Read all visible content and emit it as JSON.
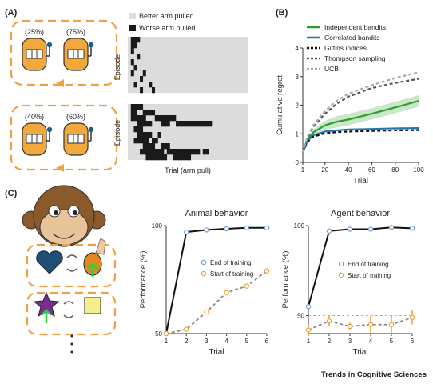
{
  "panel_labels": {
    "a": "(A)",
    "b": "(B)",
    "c": "(C)"
  },
  "footer": "Trends in Cognitive Sciences",
  "panel_a": {
    "slot_pair_top": [
      "(25%)",
      "(75%)"
    ],
    "slot_pair_bottom": [
      "(40%)",
      "(60%)"
    ],
    "legend": [
      "Better arm pulled",
      "Worse arm pulled"
    ],
    "ylabel": "Episode",
    "xlabel": "Trial (arm pull)",
    "colors": {
      "better": "#dcdcdc",
      "worse": "#1a1a1a",
      "frame": "#f0a040"
    }
  },
  "chart_data": [
    {
      "type": "line",
      "xlabel": "Trial",
      "ylabel": "Cumulative regret",
      "xlim": [
        1,
        100
      ],
      "ylim": [
        0,
        4
      ],
      "xticks": [
        1,
        20,
        40,
        60,
        80,
        100
      ],
      "yticks": [
        0,
        1,
        2,
        3,
        4
      ],
      "legend_position": "top-left",
      "series": [
        {
          "name": "Independent bandits",
          "color": "#2ca02c",
          "dash": "solid",
          "x": [
            1,
            5,
            10,
            20,
            30,
            40,
            60,
            80,
            100
          ],
          "y": [
            0.35,
            0.8,
            1.05,
            1.3,
            1.42,
            1.5,
            1.7,
            1.92,
            2.15
          ],
          "band": 0.2
        },
        {
          "name": "Correlated bandits",
          "color": "#1f77b4",
          "dash": "solid",
          "x": [
            1,
            5,
            10,
            20,
            30,
            40,
            60,
            80,
            100
          ],
          "y": [
            0.35,
            0.75,
            0.95,
            1.08,
            1.12,
            1.15,
            1.17,
            1.19,
            1.2
          ]
        },
        {
          "name": "Gittins indices",
          "color": "#111111",
          "dash": "dashed",
          "x": [
            1,
            5,
            10,
            20,
            30,
            40,
            60,
            80,
            100
          ],
          "y": [
            0.35,
            0.72,
            0.9,
            1.02,
            1.06,
            1.08,
            1.1,
            1.12,
            1.13
          ]
        },
        {
          "name": "Thompson sampling",
          "color": "#555555",
          "dash": "dashed",
          "x": [
            1,
            5,
            10,
            20,
            30,
            40,
            60,
            80,
            100
          ],
          "y": [
            0.35,
            0.85,
            1.25,
            1.7,
            2.05,
            2.3,
            2.6,
            2.78,
            2.92
          ]
        },
        {
          "name": "UCB",
          "color": "#aaaaaa",
          "dash": "dashed",
          "x": [
            1,
            5,
            10,
            20,
            30,
            40,
            60,
            80,
            100
          ],
          "y": [
            0.35,
            0.9,
            1.3,
            1.8,
            2.15,
            2.4,
            2.7,
            2.95,
            3.15
          ]
        }
      ]
    },
    {
      "type": "line",
      "title": "Animal behavior",
      "xlabel": "Trial",
      "ylabel": "Performance (%)",
      "xlim": [
        1,
        6
      ],
      "ylim": [
        50,
        100
      ],
      "xticks": [
        1,
        2,
        3,
        4,
        5,
        6
      ],
      "yticks": [
        50,
        100
      ],
      "legend_position": "center-right",
      "series": [
        {
          "name": "End of training",
          "color": "#111111",
          "marker": "#7b9ad8",
          "dash": "solid",
          "x": [
            1,
            2,
            3,
            4,
            5,
            6
          ],
          "y": [
            50,
            97,
            98,
            98.5,
            99,
            99
          ]
        },
        {
          "name": "Start of training",
          "color": "#888888",
          "marker": "#f0a030",
          "dash": "dashed",
          "x": [
            1,
            2,
            3,
            4,
            5,
            6
          ],
          "y": [
            50,
            52,
            60,
            69,
            72,
            79
          ]
        }
      ]
    },
    {
      "type": "line",
      "title": "Agent behavior",
      "xlabel": "Trial",
      "ylabel": "Performance (%)",
      "xlim": [
        1,
        6
      ],
      "ylim": [
        40,
        100
      ],
      "xticks": [
        1,
        2,
        3,
        4,
        5,
        6
      ],
      "yticks": [
        50,
        100
      ],
      "reference_line": 50,
      "legend_position": "center-right",
      "series": [
        {
          "name": "End of training",
          "color": "#111111",
          "marker": "#7b9ad8",
          "dash": "solid",
          "x": [
            1,
            2,
            3,
            4,
            5,
            6
          ],
          "y": [
            55,
            97,
            98,
            98,
            99,
            98.5
          ]
        },
        {
          "name": "Start of training",
          "color": "#888888",
          "marker": "#f0a030",
          "dash": "dashed",
          "x": [
            1,
            2,
            3,
            4,
            5,
            6
          ],
          "y": [
            42,
            47,
            44,
            45,
            45,
            49
          ],
          "err": [
            3,
            3,
            2,
            5,
            5,
            4
          ]
        }
      ]
    }
  ]
}
